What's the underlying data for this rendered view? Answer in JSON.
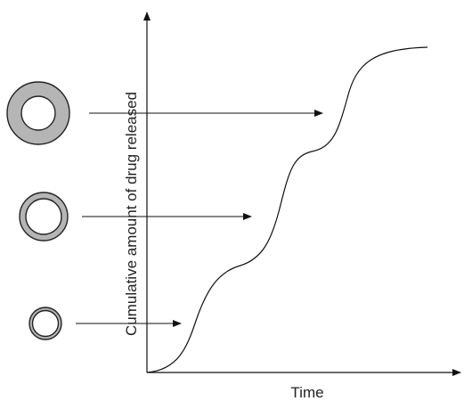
{
  "axes": {
    "y_label": "Cumulative amount of drug released",
    "x_label": "Time"
  }
}
